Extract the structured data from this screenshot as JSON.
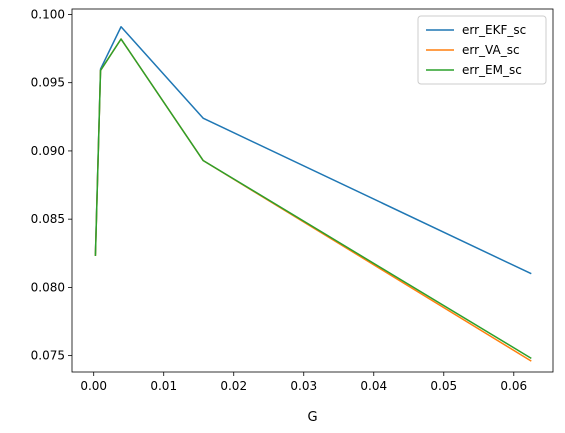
{
  "chart_data": {
    "type": "line",
    "xlabel": "G",
    "ylabel": "",
    "title": "",
    "xlim": [
      -0.0031,
      0.0656
    ],
    "ylim": [
      0.0738,
      0.1004
    ],
    "xticks": [
      0.0,
      0.01,
      0.02,
      0.03,
      0.04,
      0.05,
      0.06
    ],
    "xtick_labels": [
      "0.00",
      "0.01",
      "0.02",
      "0.03",
      "0.04",
      "0.05",
      "0.06"
    ],
    "yticks": [
      0.075,
      0.08,
      0.085,
      0.09,
      0.095,
      0.1
    ],
    "ytick_labels": [
      "0.075",
      "0.080",
      "0.085",
      "0.090",
      "0.095",
      "0.100"
    ],
    "grid": false,
    "legend_position": "top-right",
    "x": [
      0.000244,
      0.000977,
      0.003906,
      0.015625,
      0.0625
    ],
    "series": [
      {
        "name": "err_EKF_sc",
        "color": "#1f77b4",
        "values": [
          0.0824,
          0.096,
          0.0991,
          0.0924,
          0.081
        ]
      },
      {
        "name": "err_VA_sc",
        "color": "#ff7f0e",
        "values": [
          0.0823,
          0.0959,
          0.0982,
          0.0893,
          0.0746
        ]
      },
      {
        "name": "err_EM_sc",
        "color": "#2ca02c",
        "values": [
          0.0823,
          0.0959,
          0.0982,
          0.0893,
          0.0748
        ]
      }
    ]
  }
}
